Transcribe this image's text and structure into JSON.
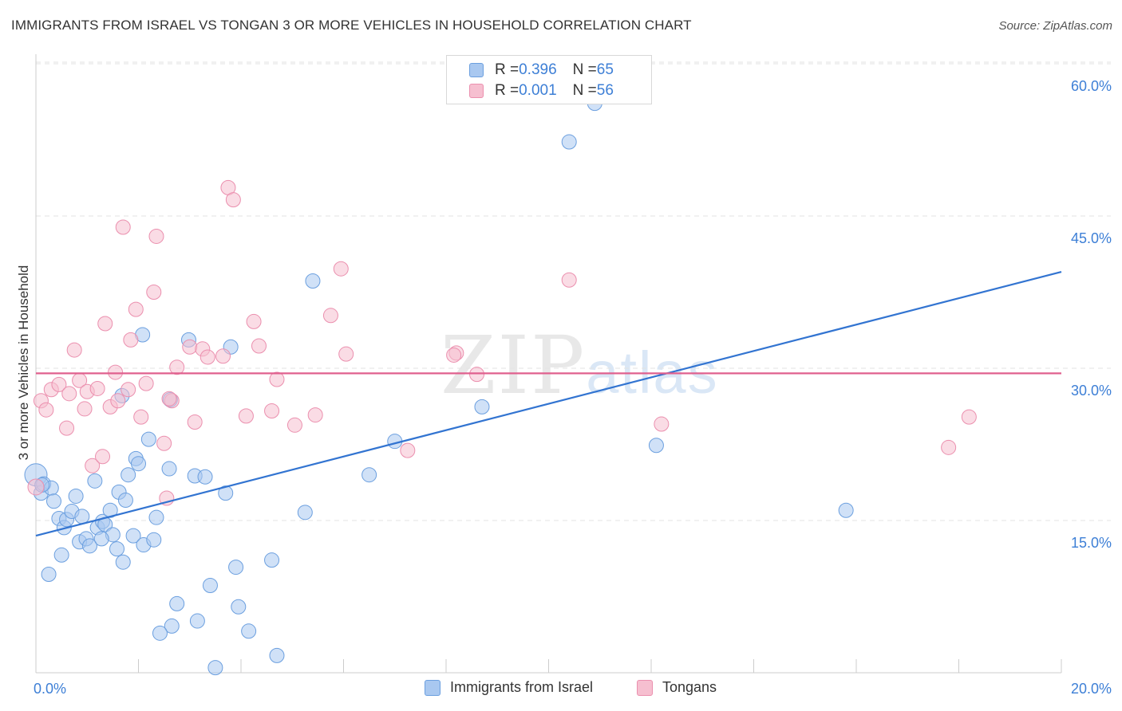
{
  "header": {
    "title": "IMMIGRANTS FROM ISRAEL VS TONGAN 3 OR MORE VEHICLES IN HOUSEHOLD CORRELATION CHART",
    "source": "Source: ZipAtlas.com"
  },
  "watermark": {
    "zip": "ZIP",
    "atlas": "atlas"
  },
  "legend_top": {
    "rows": [
      {
        "r_label": "R = ",
        "r_value": "0.396",
        "n_label": "N = ",
        "n_value": "65"
      },
      {
        "r_label": "R = ",
        "r_value": "0.001",
        "n_label": "N = ",
        "n_value": "56"
      }
    ]
  },
  "legend_bottom": {
    "items": [
      {
        "label": "Immigrants from Israel"
      },
      {
        "label": "Tongans"
      }
    ]
  },
  "colors": {
    "blue_fill": "#a9c8f0",
    "blue_stroke": "#6b9fdf",
    "blue_line": "#3274d1",
    "pink_fill": "#f6bfd0",
    "pink_stroke": "#eb8fae",
    "pink_line": "#e0608e",
    "tick_label": "#3d7fd6",
    "grid": "#e3e3e3"
  },
  "chart_data": {
    "type": "scatter",
    "title": "IMMIGRANTS FROM ISRAEL VS TONGAN 3 OR MORE VEHICLES IN HOUSEHOLD CORRELATION CHART",
    "xlabel": "",
    "ylabel": "3 or more Vehicles in Household",
    "xlim": [
      0,
      20
    ],
    "ylim": [
      0,
      60
    ],
    "x_ticks": [
      "0.0%",
      "20.0%"
    ],
    "y_ticks": [
      "15.0%",
      "30.0%",
      "45.0%",
      "60.0%"
    ],
    "y_tick_values": [
      15,
      30,
      45,
      60
    ],
    "grid": true,
    "legend_position": "top-center",
    "series": [
      {
        "name": "Immigrants from Israel",
        "r": 0.396,
        "n": 65,
        "trend": {
          "x": [
            0,
            20
          ],
          "y": [
            13.5,
            39.5
          ]
        },
        "points": [
          [
            0.0,
            19.5
          ],
          [
            0.1,
            17.7
          ],
          [
            0.15,
            18.6
          ],
          [
            0.3,
            18.2
          ],
          [
            0.35,
            16.9
          ],
          [
            0.45,
            15.2
          ],
          [
            0.5,
            11.6
          ],
          [
            0.25,
            9.7
          ],
          [
            0.55,
            14.3
          ],
          [
            0.6,
            15.1
          ],
          [
            0.7,
            15.9
          ],
          [
            0.78,
            17.4
          ],
          [
            0.85,
            12.9
          ],
          [
            0.9,
            15.4
          ],
          [
            0.98,
            13.2
          ],
          [
            1.05,
            12.5
          ],
          [
            1.15,
            18.9
          ],
          [
            1.2,
            14.3
          ],
          [
            1.3,
            14.9
          ],
          [
            1.35,
            14.6
          ],
          [
            1.45,
            16.0
          ],
          [
            1.5,
            13.6
          ],
          [
            1.58,
            12.2
          ],
          [
            1.62,
            17.8
          ],
          [
            1.7,
            10.9
          ],
          [
            1.75,
            17.0
          ],
          [
            1.8,
            19.5
          ],
          [
            1.9,
            13.5
          ],
          [
            1.95,
            21.1
          ],
          [
            2.0,
            20.6
          ],
          [
            2.1,
            12.6
          ],
          [
            2.3,
            13.1
          ],
          [
            2.35,
            15.3
          ],
          [
            2.2,
            23.0
          ],
          [
            2.6,
            20.1
          ],
          [
            2.75,
            6.8
          ],
          [
            2.65,
            4.6
          ],
          [
            3.1,
            19.4
          ],
          [
            3.3,
            19.3
          ],
          [
            3.4,
            8.6
          ],
          [
            3.5,
            0.5
          ],
          [
            3.7,
            17.7
          ],
          [
            3.8,
            32.1
          ],
          [
            3.9,
            10.4
          ],
          [
            3.95,
            6.5
          ],
          [
            4.15,
            4.1
          ],
          [
            4.6,
            11.1
          ],
          [
            4.7,
            1.7
          ],
          [
            5.25,
            15.8
          ],
          [
            5.4,
            38.6
          ],
          [
            6.5,
            19.5
          ],
          [
            7.0,
            22.8
          ],
          [
            8.7,
            26.2
          ],
          [
            10.4,
            52.3
          ],
          [
            10.9,
            56.1
          ],
          [
            12.1,
            22.4
          ],
          [
            15.8,
            16.0
          ],
          [
            1.68,
            27.3
          ],
          [
            2.08,
            33.3
          ],
          [
            2.62,
            26.9
          ],
          [
            2.98,
            32.8
          ],
          [
            0.12,
            18.5
          ],
          [
            1.28,
            13.2
          ],
          [
            2.42,
            3.9
          ],
          [
            3.15,
            5.1
          ]
        ]
      },
      {
        "name": "Tongans",
        "r": 0.001,
        "n": 56,
        "trend": {
          "x": [
            0,
            20
          ],
          "y": [
            29.5,
            29.5
          ]
        },
        "points": [
          [
            0.0,
            18.3
          ],
          [
            0.1,
            26.8
          ],
          [
            0.2,
            25.9
          ],
          [
            0.3,
            27.9
          ],
          [
            0.45,
            28.4
          ],
          [
            0.6,
            24.1
          ],
          [
            0.65,
            27.5
          ],
          [
            0.75,
            31.8
          ],
          [
            0.85,
            28.8
          ],
          [
            0.95,
            26.0
          ],
          [
            1.0,
            27.7
          ],
          [
            1.1,
            20.4
          ],
          [
            1.2,
            28.0
          ],
          [
            1.3,
            21.3
          ],
          [
            1.35,
            34.4
          ],
          [
            1.45,
            26.2
          ],
          [
            1.55,
            29.6
          ],
          [
            1.6,
            26.8
          ],
          [
            1.7,
            43.9
          ],
          [
            1.8,
            27.9
          ],
          [
            1.85,
            32.8
          ],
          [
            1.95,
            35.8
          ],
          [
            2.05,
            25.2
          ],
          [
            2.15,
            28.5
          ],
          [
            2.3,
            37.5
          ],
          [
            2.35,
            43.0
          ],
          [
            2.5,
            22.6
          ],
          [
            2.55,
            17.2
          ],
          [
            2.65,
            26.8
          ],
          [
            2.75,
            30.1
          ],
          [
            3.0,
            32.1
          ],
          [
            3.1,
            24.7
          ],
          [
            3.25,
            31.9
          ],
          [
            3.35,
            31.1
          ],
          [
            3.65,
            31.2
          ],
          [
            3.75,
            47.8
          ],
          [
            3.85,
            46.6
          ],
          [
            4.1,
            25.3
          ],
          [
            4.25,
            34.6
          ],
          [
            4.35,
            32.2
          ],
          [
            4.6,
            25.8
          ],
          [
            4.7,
            28.9
          ],
          [
            5.05,
            24.4
          ],
          [
            5.45,
            25.4
          ],
          [
            5.75,
            35.2
          ],
          [
            5.95,
            39.8
          ],
          [
            6.05,
            31.4
          ],
          [
            7.25,
            21.9
          ],
          [
            8.2,
            31.5
          ],
          [
            8.15,
            31.3
          ],
          [
            8.6,
            29.4
          ],
          [
            10.4,
            38.7
          ],
          [
            12.2,
            24.5
          ],
          [
            17.8,
            22.2
          ],
          [
            18.2,
            25.2
          ],
          [
            2.6,
            27.0
          ]
        ]
      }
    ]
  }
}
